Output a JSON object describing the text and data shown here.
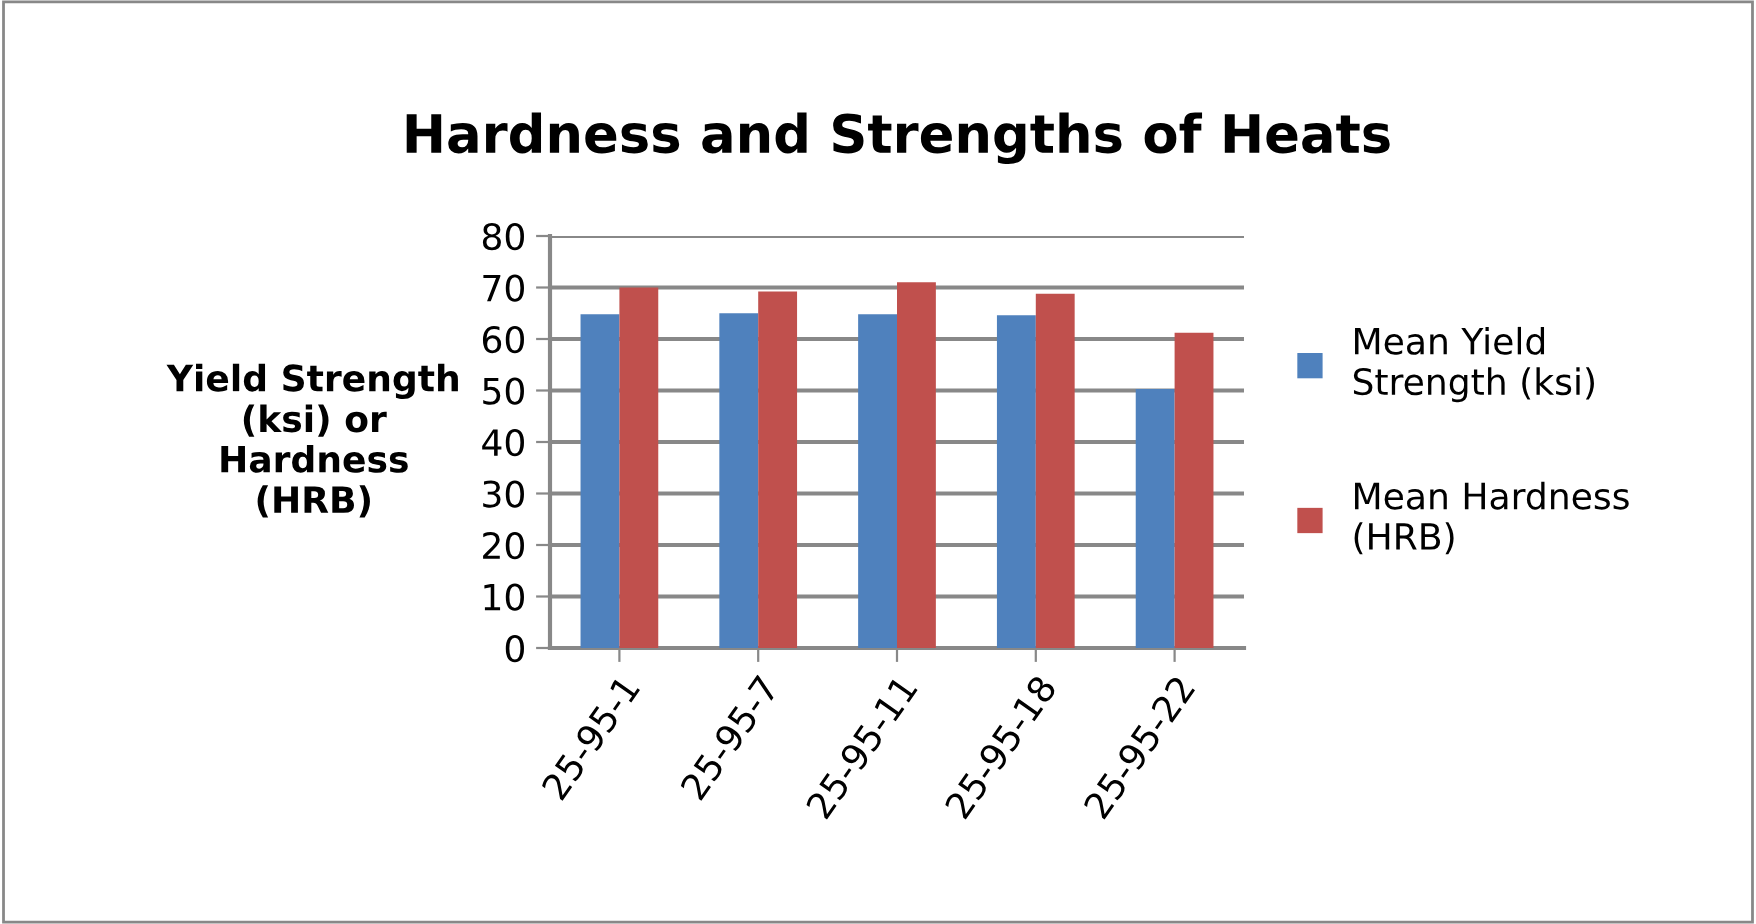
{
  "chart_data": {
    "type": "bar",
    "title": "Hardness and Strengths of Heats",
    "ylabel": "Yield Strength\n(ksi) or\nHardness\n(HRB)",
    "categories": [
      "25-95-1",
      "25-95-7",
      "25-95-11",
      "25-95-18",
      "25-95-22"
    ],
    "series": [
      {
        "name": "Mean Yield\nStrength (ksi)",
        "color": "#4f81bd",
        "values": [
          64.8,
          65,
          64.8,
          64.6,
          50.3
        ]
      },
      {
        "name": "Mean Hardness\n(HRB)",
        "color": "#c0504d",
        "values": [
          70,
          69.2,
          71,
          68.8,
          61.2
        ]
      }
    ],
    "ylim": [
      0,
      80
    ],
    "yticks": [
      0,
      10,
      20,
      30,
      40,
      50,
      60,
      70,
      80
    ],
    "grid": "y",
    "legend": "right"
  }
}
